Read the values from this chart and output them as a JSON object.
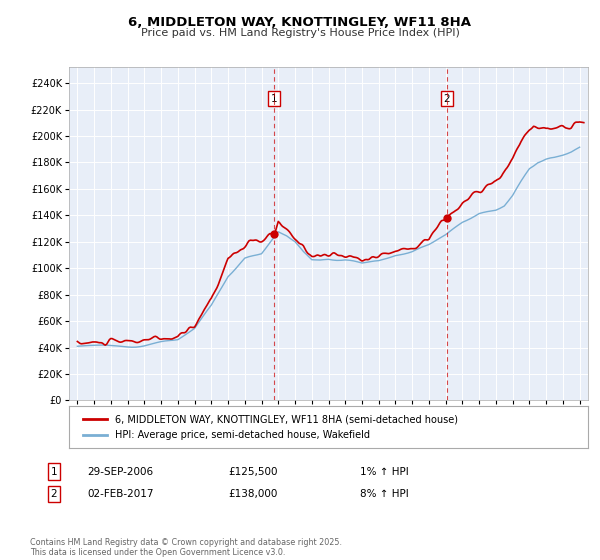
{
  "title": "6, MIDDLETON WAY, KNOTTINGLEY, WF11 8HA",
  "subtitle": "Price paid vs. HM Land Registry's House Price Index (HPI)",
  "hpi_label": "HPI: Average price, semi-detached house, Wakefield",
  "property_label": "6, MIDDLETON WAY, KNOTTINGLEY, WF11 8HA (semi-detached house)",
  "ylabel_values": [
    0,
    20000,
    40000,
    60000,
    80000,
    100000,
    120000,
    140000,
    160000,
    180000,
    200000,
    220000,
    240000
  ],
  "ylabel_texts": [
    "£0",
    "£20K",
    "£40K",
    "£60K",
    "£80K",
    "£100K",
    "£120K",
    "£140K",
    "£160K",
    "£180K",
    "£200K",
    "£220K",
    "£240K"
  ],
  "xlim": [
    1994.5,
    2025.5
  ],
  "ylim": [
    0,
    252000
  ],
  "background_color": "#ffffff",
  "plot_bg_color": "#e8eef8",
  "grid_color": "#ffffff",
  "hpi_color": "#7aafd4",
  "property_color": "#cc0000",
  "marker1_x": 2006.75,
  "marker1_y": 125500,
  "marker2_x": 2017.08,
  "marker2_y": 138000,
  "annotation1": {
    "label": "1",
    "date": "29-SEP-2006",
    "price": "£125,500",
    "hpi": "1% ↑ HPI"
  },
  "annotation2": {
    "label": "2",
    "date": "02-FEB-2017",
    "price": "£138,000",
    "hpi": "8% ↑ HPI"
  },
  "copyright_text": "Contains HM Land Registry data © Crown copyright and database right 2025.\nThis data is licensed under the Open Government Licence v3.0."
}
